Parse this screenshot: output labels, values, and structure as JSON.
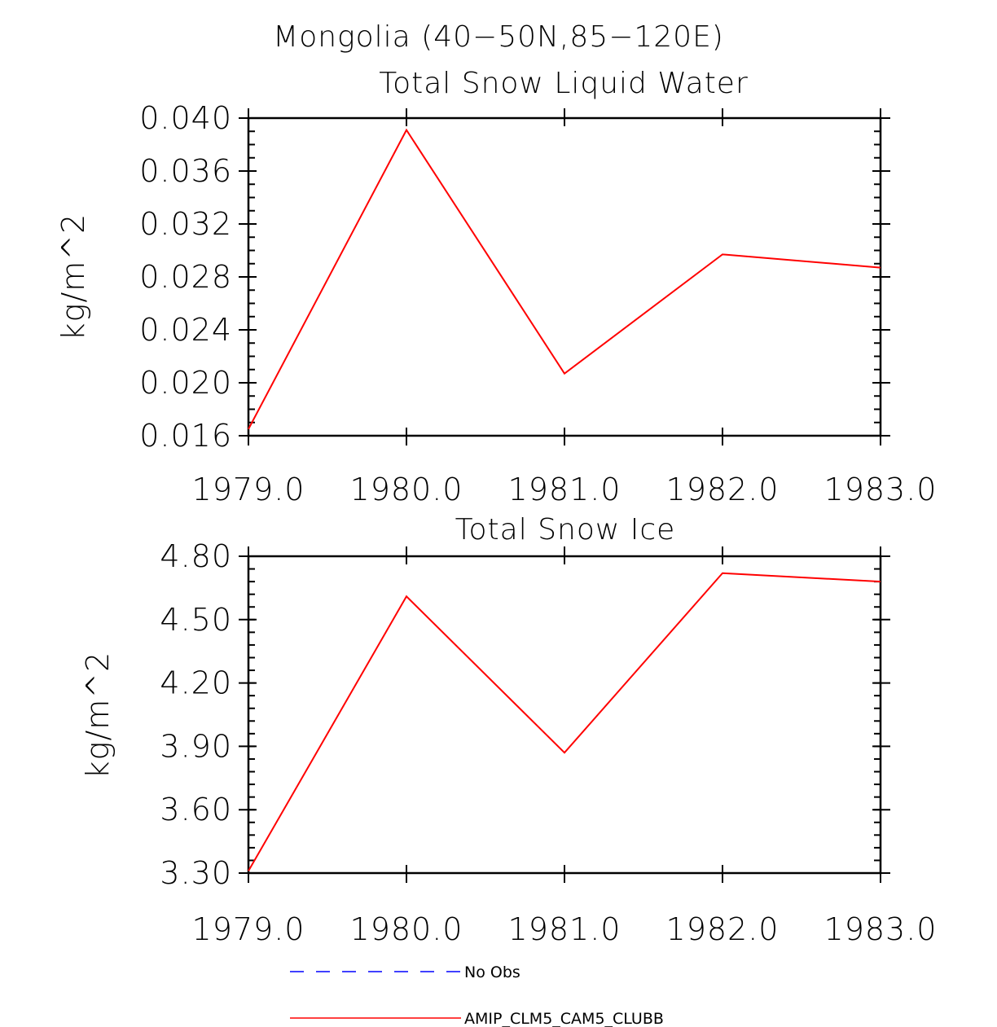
{
  "figure_title": "Mongolia (40−50N,85−120E)",
  "chart_data": [
    {
      "type": "line",
      "title": "Total Snow Liquid Water",
      "xlabel": "",
      "ylabel": "kg/m^2",
      "x": [
        1979.0,
        1980.0,
        1981.0,
        1982.0,
        1983.0
      ],
      "xlim": [
        1979.0,
        1983.0
      ],
      "x_ticks": [
        1979.0,
        1980.0,
        1981.0,
        1982.0,
        1983.0
      ],
      "x_tick_labels": [
        "1979.0",
        "1980.0",
        "1981.0",
        "1982.0",
        "1983.0"
      ],
      "ylim": [
        0.016,
        0.04
      ],
      "y_ticks": [
        0.016,
        0.02,
        0.024,
        0.028,
        0.032,
        0.036,
        0.04
      ],
      "y_tick_labels": [
        "0.016",
        "0.020",
        "0.024",
        "0.028",
        "0.032",
        "0.036",
        "0.040"
      ],
      "y_minor_step": 0.001,
      "grid": false,
      "series": [
        {
          "name": "AMIP_CLM5_CAM5_CLUBB",
          "color": "#ff0000",
          "dash": "solid",
          "values": [
            0.0165,
            0.0391,
            0.0207,
            0.0297,
            0.0287
          ]
        }
      ]
    },
    {
      "type": "line",
      "title": "Total Snow Ice",
      "xlabel": "",
      "ylabel": "kg/m^2",
      "x": [
        1979.0,
        1980.0,
        1981.0,
        1982.0,
        1983.0
      ],
      "xlim": [
        1979.0,
        1983.0
      ],
      "x_ticks": [
        1979.0,
        1980.0,
        1981.0,
        1982.0,
        1983.0
      ],
      "x_tick_labels": [
        "1979.0",
        "1980.0",
        "1981.0",
        "1982.0",
        "1983.0"
      ],
      "ylim": [
        3.3,
        4.8
      ],
      "y_ticks": [
        3.3,
        3.6,
        3.9,
        4.2,
        4.5,
        4.8
      ],
      "y_tick_labels": [
        "3.30",
        "3.60",
        "3.90",
        "4.20",
        "4.50",
        "4.80"
      ],
      "y_minor_step": 0.06,
      "grid": false,
      "series": [
        {
          "name": "AMIP_CLM5_CAM5_CLUBB",
          "color": "#ff0000",
          "dash": "solid",
          "values": [
            3.31,
            4.61,
            3.87,
            4.72,
            4.68
          ]
        }
      ]
    }
  ],
  "legend": {
    "placement": "bottom",
    "entries": [
      {
        "label": "No Obs",
        "color": "#0000ff",
        "dash": "dashed"
      },
      {
        "label": "AMIP_CLM5_CAM5_CLUBB",
        "color": "#ff0000",
        "dash": "solid"
      }
    ]
  }
}
